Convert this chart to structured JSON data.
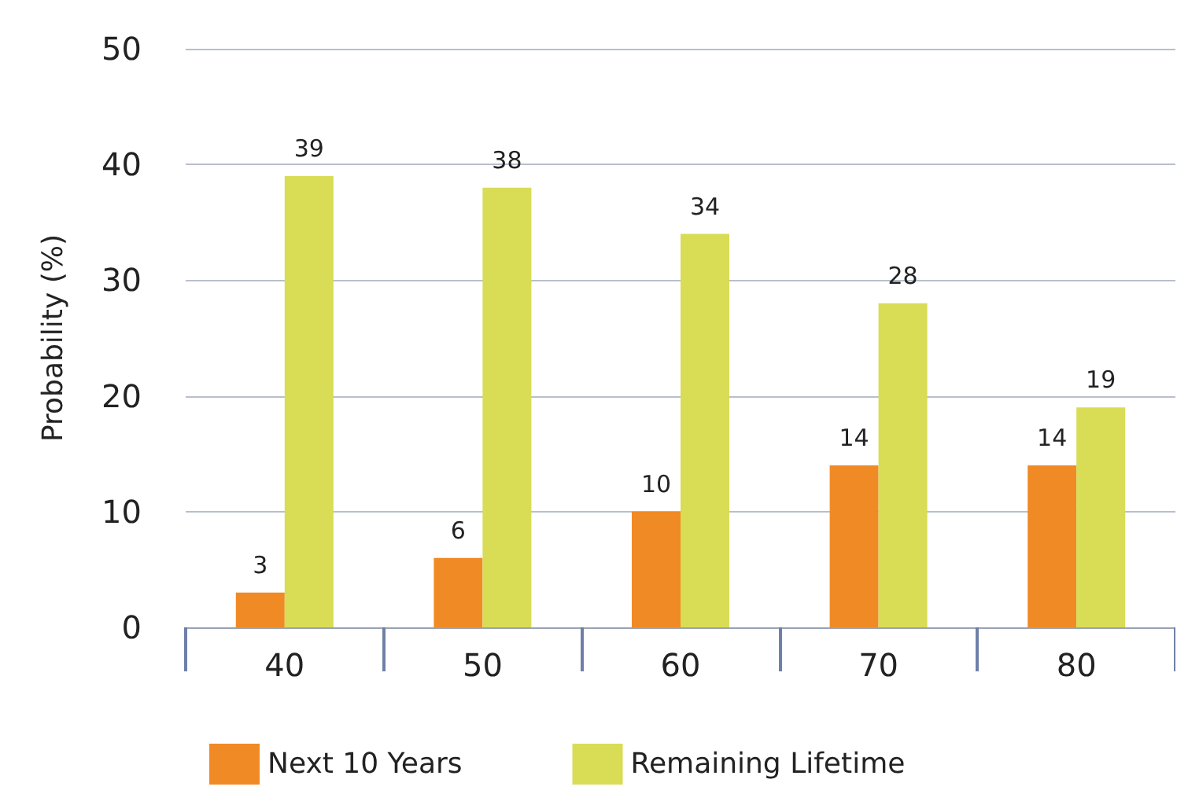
{
  "chart_data": {
    "type": "bar",
    "ylabel": "Probability (%)",
    "categories": [
      "40",
      "50",
      "60",
      "70",
      "80"
    ],
    "series": [
      {
        "name": "Next 10 Years",
        "color": "#f08a24",
        "values": [
          3,
          6,
          10,
          14,
          14
        ]
      },
      {
        "name": "Remaining Lifetime",
        "color": "#d9dc55",
        "values": [
          39,
          38,
          34,
          28,
          19
        ]
      }
    ],
    "ylim": [
      0,
      50
    ],
    "yticks": [
      0,
      10,
      20,
      30,
      40,
      50
    ],
    "grid": "y",
    "legend": "bottom left",
    "data_labels": true
  }
}
